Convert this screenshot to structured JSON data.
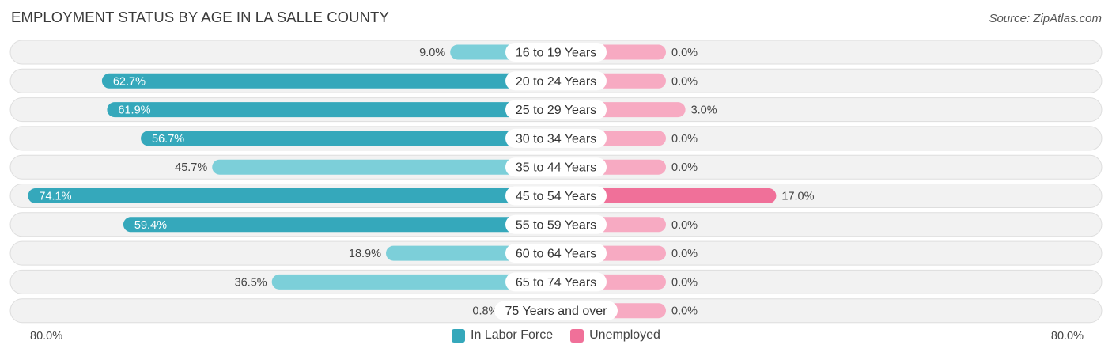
{
  "chart_data": {
    "type": "bar",
    "orientation": "horizontal-diverging",
    "title": "EMPLOYMENT STATUS BY AGE IN LA SALLE COUNTY",
    "source": "Source: ZipAtlas.com",
    "categories": [
      "16 to 19 Years",
      "20 to 24 Years",
      "25 to 29 Years",
      "30 to 34 Years",
      "35 to 44 Years",
      "45 to 54 Years",
      "55 to 59 Years",
      "60 to 64 Years",
      "65 to 74 Years",
      "75 Years and over"
    ],
    "series": [
      {
        "name": "In Labor Force",
        "side": "left",
        "color": "#35a8bb",
        "color_light": "#7ccfd9",
        "values": [
          9.0,
          62.7,
          61.9,
          56.7,
          45.7,
          74.1,
          59.4,
          18.9,
          36.5,
          0.8
        ],
        "labels": [
          "9.0%",
          "62.7%",
          "61.9%",
          "56.7%",
          "45.7%",
          "74.1%",
          "59.4%",
          "18.9%",
          "36.5%",
          "0.8%"
        ]
      },
      {
        "name": "Unemployed",
        "side": "right",
        "color": "#f07099",
        "color_light": "#f7aac2",
        "values": [
          0.0,
          0.0,
          3.0,
          0.0,
          0.0,
          17.0,
          0.0,
          0.0,
          0.0,
          0.0
        ],
        "labels": [
          "0.0%",
          "0.0%",
          "3.0%",
          "0.0%",
          "0.0%",
          "17.0%",
          "0.0%",
          "0.0%",
          "0.0%",
          "0.0%"
        ]
      }
    ],
    "axis_max": 80.0,
    "axis_left_label": "80.0%",
    "axis_right_label": "80.0%",
    "legend_position": "bottom-center"
  }
}
